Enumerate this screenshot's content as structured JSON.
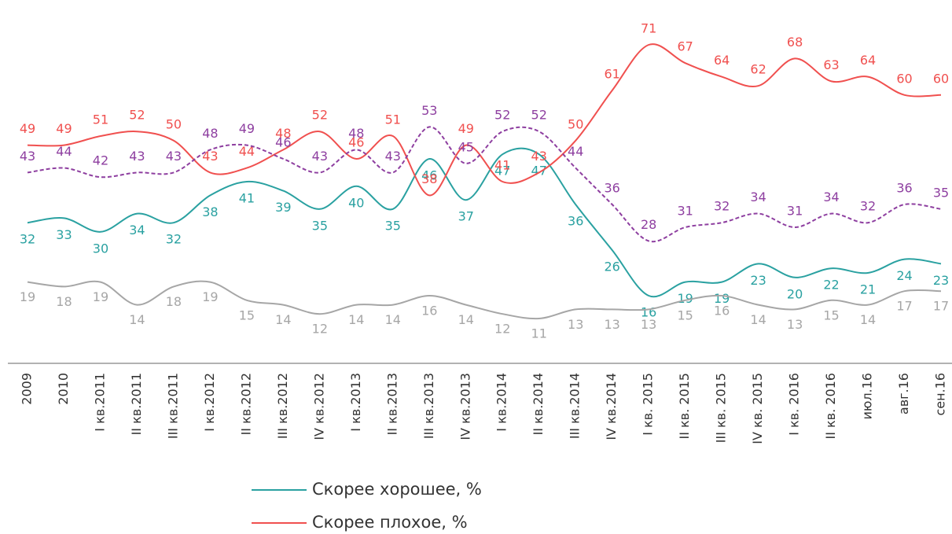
{
  "chart_data": {
    "type": "line",
    "categories": [
      "2009",
      "2010",
      "I кв.2011",
      "II кв.2011",
      "III кв.2011",
      "I кв.2012",
      "II кв.2012",
      "III кв.2012",
      "IV кв.2012",
      "I кв.2013",
      "II кв.2013",
      "III кв.2013",
      "IV кв.2013",
      "I кв.2014",
      "II кв.2014",
      "III кв.2014",
      "IV кв.2014",
      "I кв. 2015",
      "II кв. 2015",
      "III кв. 2015",
      "IV кв. 2015",
      "I кв. 2016",
      "II кв. 2016",
      "июл.16",
      "авг.16",
      "сен.16"
    ],
    "series": [
      {
        "name": "Скорее хорошее, %",
        "color": "#2aa1a1",
        "values": [
          32,
          33,
          30,
          34,
          32,
          38,
          41,
          39,
          35,
          40,
          35,
          46,
          37,
          47,
          47,
          36,
          26,
          16,
          19,
          19,
          23,
          20,
          22,
          21,
          24,
          23
        ]
      },
      {
        "name": "Скорее плохое, %",
        "color": "#f0504f",
        "values": [
          49,
          49,
          51,
          52,
          50,
          43,
          44,
          48,
          52,
          46,
          51,
          38,
          49,
          41,
          43,
          50,
          61,
          71,
          67,
          64,
          62,
          68,
          63,
          64,
          60,
          60
        ]
      },
      {
        "color": "#8e3fa0",
        "dashed": true,
        "values": [
          43,
          44,
          42,
          43,
          43,
          48,
          49,
          46,
          43,
          48,
          43,
          53,
          45,
          52,
          52,
          44,
          36,
          28,
          31,
          32,
          34,
          31,
          34,
          32,
          36,
          35
        ]
      },
      {
        "color": "#a6a6a6",
        "values": [
          19,
          18,
          19,
          14,
          18,
          19,
          15,
          14,
          12,
          14,
          14,
          16,
          14,
          12,
          11,
          13,
          13,
          13,
          15,
          16,
          14,
          13,
          15,
          14,
          17,
          17
        ]
      }
    ]
  }
}
